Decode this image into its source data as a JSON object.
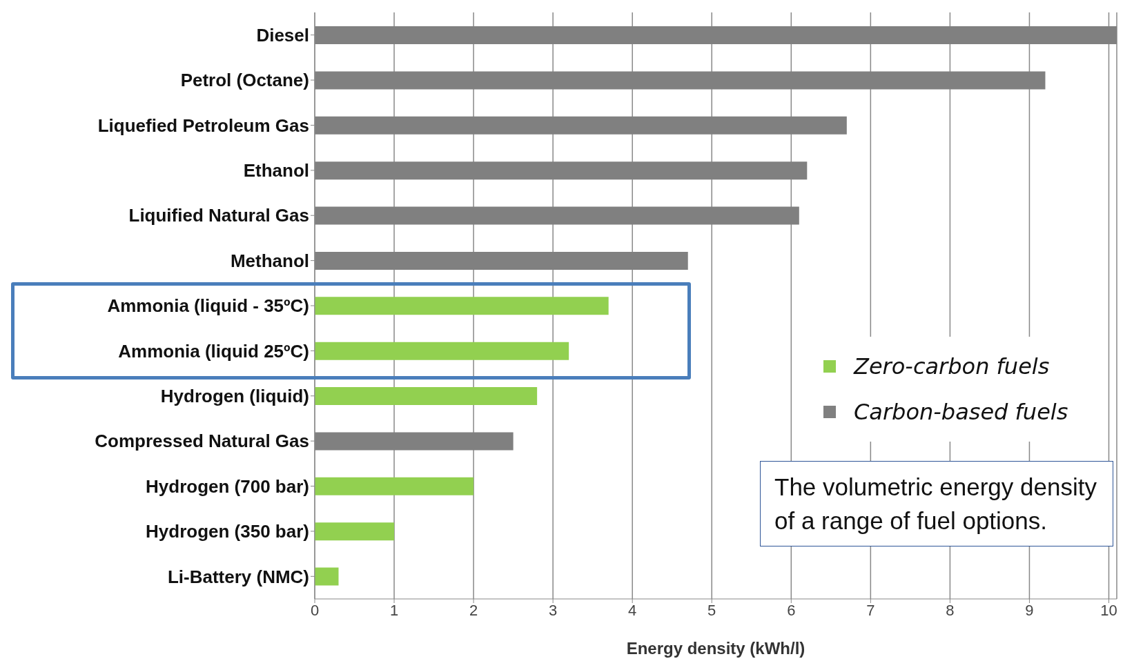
{
  "chart_data": {
    "type": "bar",
    "orientation": "horizontal",
    "stacked": true,
    "categories": [
      "Diesel",
      "Petrol (Octane)",
      "Liquefied Petroleum Gas",
      "Ethanol",
      "Liquified Natural Gas",
      "Methanol",
      "Ammonia (liquid - 35ºC)",
      "Ammonia (liquid 25ºC)",
      "Hydrogen (liquid)",
      "Compressed Natural Gas",
      "Hydrogen (700 bar)",
      "Hydrogen (350 bar)",
      "Li-Battery (NMC)"
    ],
    "series": [
      {
        "name": "Zero-carbon fuels",
        "color": "#92d050",
        "values": [
          null,
          null,
          null,
          null,
          null,
          null,
          3.7,
          3.2,
          2.8,
          null,
          2.0,
          1.0,
          0.3
        ]
      },
      {
        "name": "Carbon-based fuels",
        "color": "#808080",
        "values": [
          10.1,
          9.2,
          6.7,
          6.2,
          6.1,
          4.7,
          null,
          null,
          null,
          2.5,
          null,
          null,
          null
        ]
      }
    ],
    "xlim": [
      0,
      10.1
    ],
    "xticks": [
      0,
      1,
      2,
      3,
      4,
      5,
      6,
      7,
      8,
      9,
      10
    ],
    "xlabel": "Energy density (kWh/l)",
    "grid": "x",
    "legend": "right",
    "annotations": [
      "The volumetric energy density of a range of fuel options."
    ]
  }
}
